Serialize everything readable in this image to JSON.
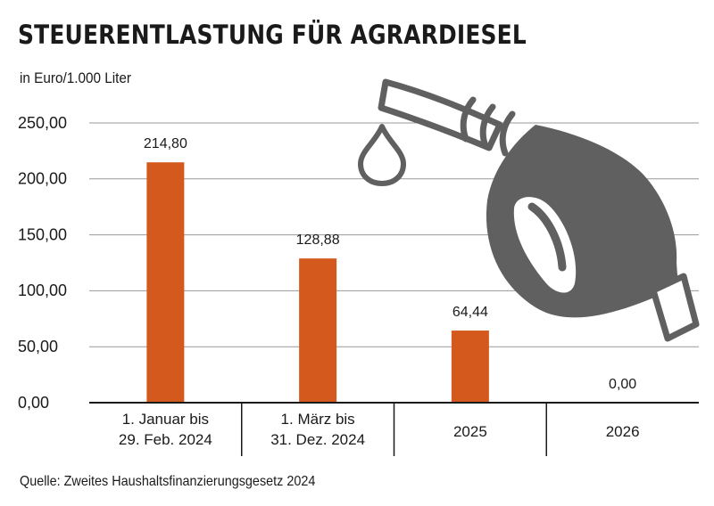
{
  "title": "STEUERENTLASTUNG FÜR AGRARDIESEL",
  "unit": "in Euro/1.000 Liter",
  "source": "Quelle: Zweites Haushaltsfinanzierungsgesetz 2024",
  "colors": {
    "bar": "#d35a1c",
    "icon": "#606060",
    "grid": "#999999"
  },
  "icon": "fuel-nozzle-icon",
  "chart_data": {
    "type": "bar",
    "categories": [
      [
        "1. Januar bis",
        "29. Feb. 2024"
      ],
      [
        "1. März bis",
        "31. Dez. 2024"
      ],
      [
        "2025"
      ],
      [
        "2026"
      ]
    ],
    "values": [
      214.8,
      128.88,
      64.44,
      0.0
    ],
    "value_labels": [
      "214,80",
      "128,88",
      "64,44",
      "0,00"
    ],
    "yticks": [
      0,
      50,
      100,
      150,
      200,
      250
    ],
    "ytick_labels": [
      "0,00",
      "50,00",
      "100,00",
      "150,00",
      "200,00",
      "250,00"
    ],
    "ylim": [
      0,
      250
    ],
    "grid": true,
    "ylabel": "in Euro/1.000 Liter",
    "xlabel": ""
  }
}
